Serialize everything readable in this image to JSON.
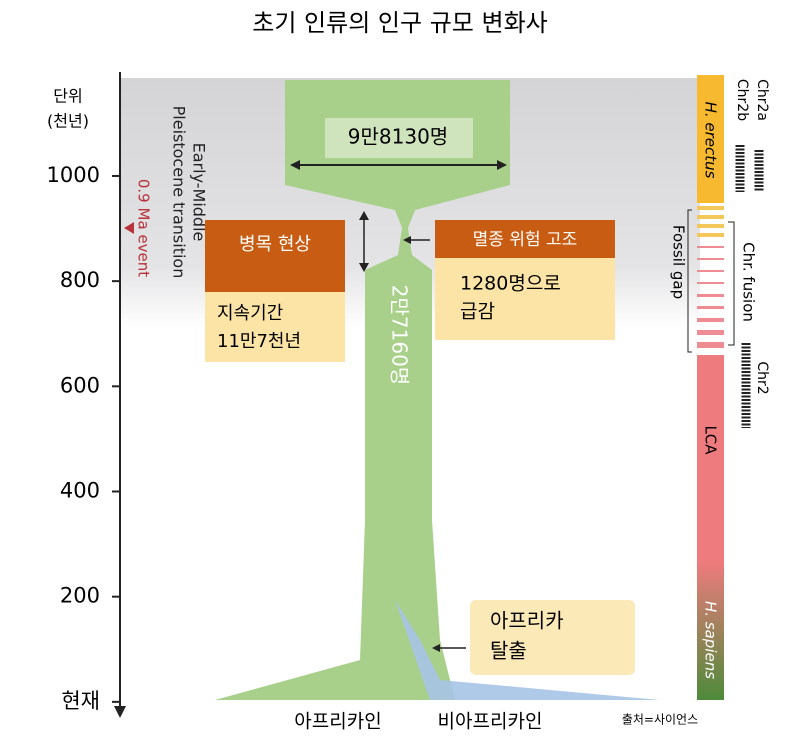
{
  "title": "초기 인류의 인구 규모 변화사",
  "axis": {
    "unit": [
      "단위",
      "(천년)"
    ],
    "ylim": [
      -25,
      1192
    ],
    "ticks": [
      {
        "value": 0,
        "label": "현재"
      },
      200,
      400,
      600,
      800,
      1000
    ]
  },
  "transition": [
    "Early-Middle",
    "Pleistocene transition"
  ],
  "event": "0.9 Ma event",
  "population_before": "9만8130명",
  "bottleneck": {
    "title": "병목 현상",
    "lines": [
      "지속기간",
      "11만7천년"
    ]
  },
  "extinction": {
    "title": "멸종 위험 고조",
    "lines": [
      "1280명으로",
      "급감"
    ]
  },
  "population_after": "2만7160명",
  "out_of_africa": [
    "아프리카",
    "탈출"
  ],
  "groups": [
    "아프리카인",
    "비아프리카인"
  ],
  "source": "출처=사이언스",
  "timeline": {
    "erectus": "H. erectus",
    "sapiens": "H. sapiens",
    "lca": "LCA",
    "gap": "Fossil gap",
    "chr2a": "Chr2a",
    "chr2b": "Chr2b",
    "fusion": "Chr. fusion",
    "chr2": "Chr2"
  }
}
